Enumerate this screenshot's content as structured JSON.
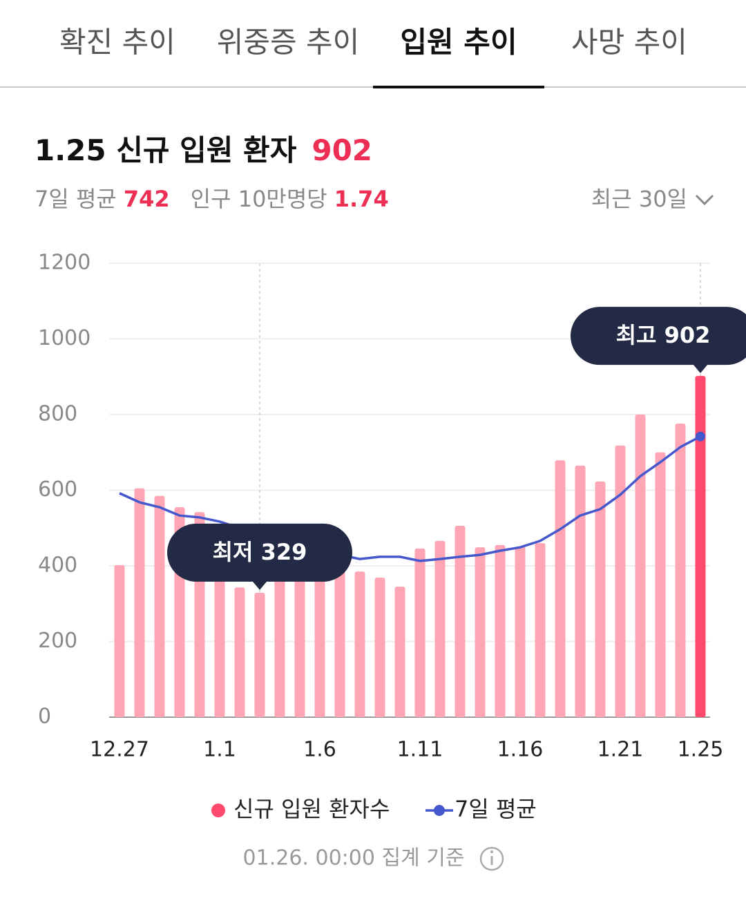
{
  "tabs": {
    "items": [
      "확진 추이",
      "위중증 추이",
      "입원 추이",
      "사망 추이"
    ],
    "active": 2
  },
  "header": {
    "title": "1.25 신규 입원 환자",
    "title_value": "902",
    "avg_label": "7일 평균",
    "avg_value": "742",
    "per_label": "인구 10만명당",
    "per_value": "1.74",
    "range": "최근 30일"
  },
  "chart_data": {
    "type": "bar",
    "categories": [
      "12.27",
      null,
      null,
      null,
      null,
      "1.1",
      null,
      null,
      null,
      null,
      "1.6",
      null,
      null,
      null,
      null,
      "1.11",
      null,
      null,
      null,
      null,
      "1.16",
      null,
      null,
      null,
      null,
      "1.21",
      null,
      null,
      null,
      "1.25"
    ],
    "series": [
      {
        "name": "신규 입원 환자수",
        "type": "bar",
        "color": "#ffa5b4",
        "highlight_color": "#ff4a6e",
        "values": [
          402,
          605,
          585,
          555,
          542,
          510,
          343,
          329,
          400,
          410,
          430,
          402,
          385,
          369,
          345,
          446,
          466,
          506,
          449,
          455,
          451,
          460,
          679,
          665,
          623,
          718,
          800,
          700,
          776,
          902
        ]
      },
      {
        "name": "7일 평균",
        "type": "line",
        "color": "#4557cc",
        "values": [
          592,
          568,
          555,
          533,
          528,
          517,
          500,
          480,
          460,
          453,
          438,
          429,
          418,
          424,
          424,
          413,
          418,
          424,
          429,
          440,
          449,
          466,
          497,
          533,
          550,
          588,
          637,
          674,
          714,
          742
        ]
      }
    ],
    "ylim": [
      0,
      1200
    ],
    "yticks": [
      0,
      200,
      400,
      600,
      800,
      1000,
      1200
    ],
    "grid": true,
    "annotations": {
      "min": "최저 329",
      "max": "최고 902"
    }
  },
  "footer": "01.26. 00:00 집계 기준"
}
